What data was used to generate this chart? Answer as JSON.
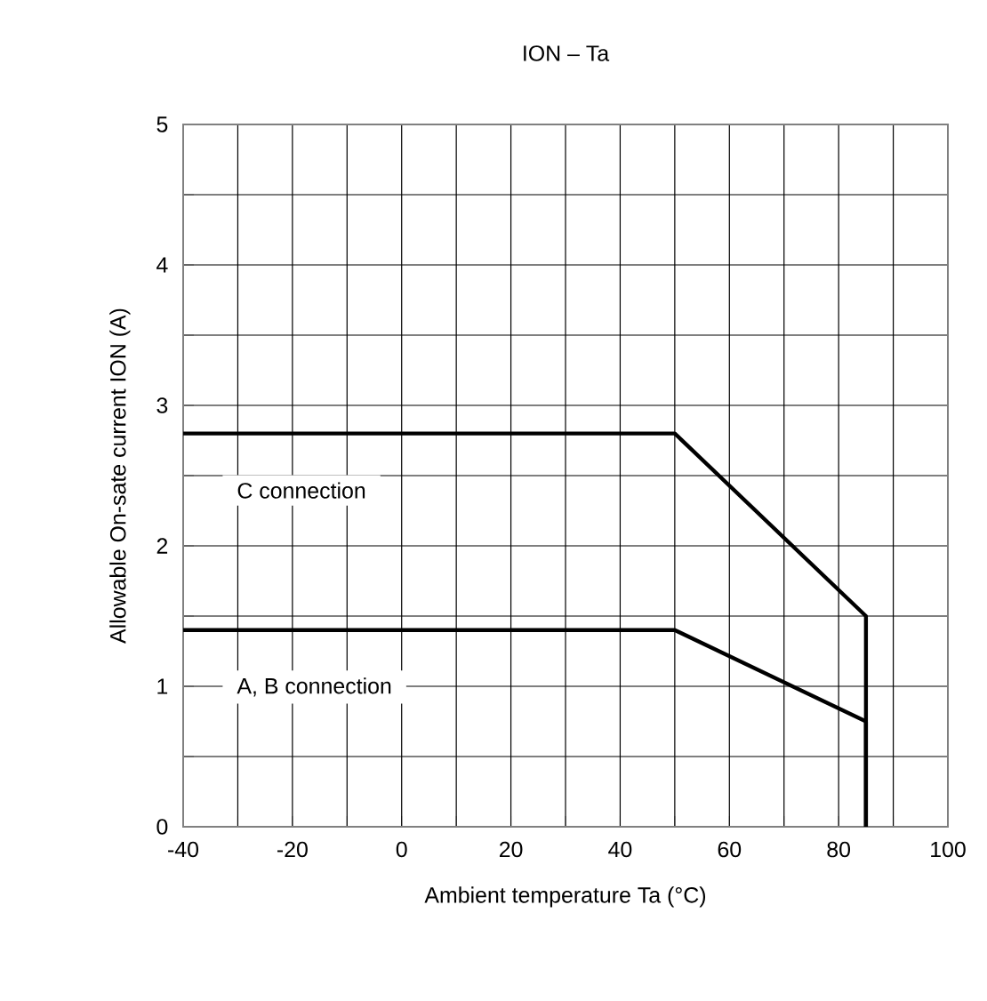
{
  "chart_data": {
    "type": "line",
    "title": "ION – Ta",
    "xlabel": "Ambient temperature    Ta (°C)",
    "ylabel": "Allowable On-sate current    ION    (A)",
    "series": [
      {
        "name": "C connection",
        "color": "#000000",
        "x": [
          -40,
          50,
          85,
          85
        ],
        "values": [
          2.8,
          2.8,
          1.5,
          0
        ]
      },
      {
        "name": "A, B connection",
        "color": "#000000",
        "x": [
          -40,
          50,
          85,
          85
        ],
        "values": [
          1.4,
          1.4,
          0.75,
          0
        ]
      }
    ],
    "xlim": [
      -40,
      100
    ],
    "xticks": [
      -40,
      {
        "value": -30,
        "label": null
      },
      -20,
      {
        "value": -10,
        "label": null
      },
      0,
      {
        "value": 10,
        "label": null
      },
      20,
      {
        "value": 30,
        "label": null
      },
      40,
      {
        "value": 50,
        "label": null
      },
      60,
      {
        "value": 70,
        "label": null
      },
      80,
      {
        "value": 90,
        "label": null
      },
      100
    ],
    "ylim": [
      0,
      5
    ],
    "yticks": [
      0,
      {
        "value": 0.5,
        "label": null
      },
      1,
      {
        "value": 1.5,
        "label": null
      },
      2,
      {
        "value": 2.5,
        "label": null
      },
      3,
      {
        "value": 3.5,
        "label": null
      },
      4,
      {
        "value": 4.5,
        "label": null
      },
      5
    ],
    "grid": true,
    "marker": "none",
    "line_style": "solid",
    "legend": false
  }
}
